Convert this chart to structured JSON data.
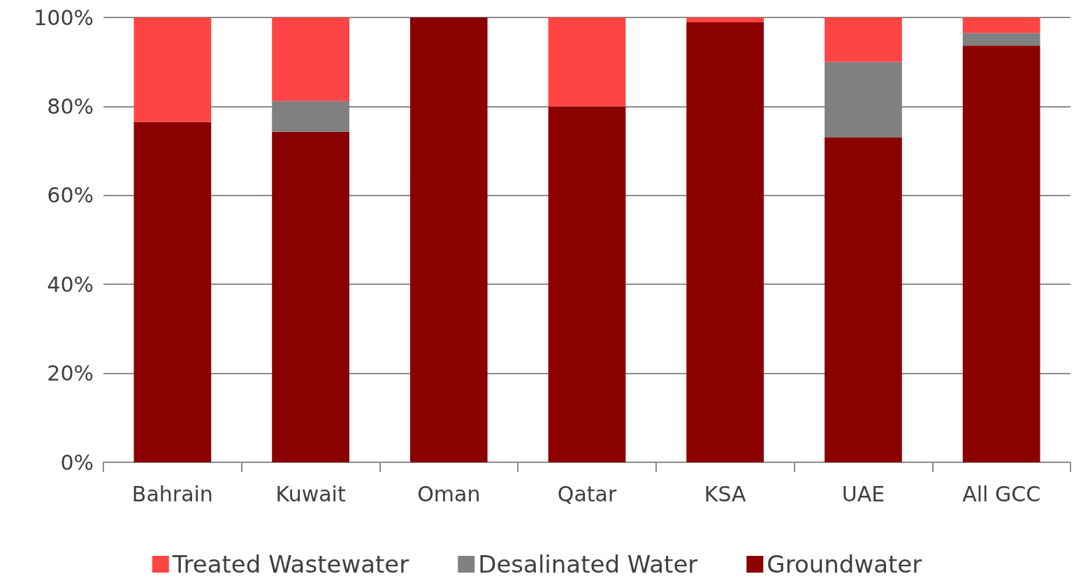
{
  "chart_data": {
    "type": "bar",
    "stacked": true,
    "categories": [
      "Bahrain",
      "Kuwait",
      "Oman",
      "Qatar",
      "KSA",
      "UAE",
      "All GCC"
    ],
    "series": [
      {
        "name": "Groundwater",
        "color": "#8b0000",
        "values": [
          76.5,
          74.3,
          100,
          80,
          98.9,
          73,
          93.7
        ]
      },
      {
        "name": "Desalinated Water",
        "color": "#808080",
        "values": [
          0,
          6.9,
          0,
          0,
          0,
          17,
          2.8
        ]
      },
      {
        "name": "Treated Wastewater",
        "color": "#ff4444",
        "values": [
          23.5,
          18.8,
          0,
          20,
          1.1,
          10,
          3.5
        ]
      }
    ],
    "ylim": [
      0,
      100
    ],
    "yticks": [
      {
        "value": 0,
        "label": "0%"
      },
      {
        "value": 20,
        "label": "20%"
      },
      {
        "value": 40,
        "label": "40%"
      },
      {
        "value": 60,
        "label": "60%"
      },
      {
        "value": 80,
        "label": "80%"
      },
      {
        "value": 100,
        "label": "100%"
      }
    ],
    "grid": "y",
    "legend": "bottom"
  }
}
